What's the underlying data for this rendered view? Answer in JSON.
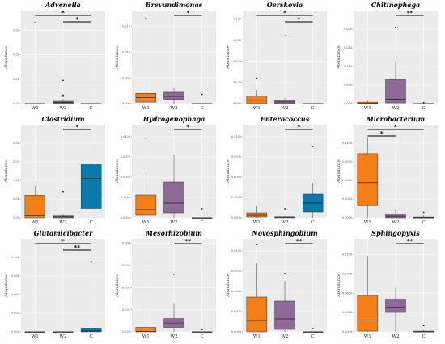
{
  "colors": {
    "W1": "#F57F17",
    "W2": "#8E6A97",
    "C": "#0A7AA8",
    "panel_bg": "#EBEBEB"
  },
  "chart_data": [
    {
      "type": "box",
      "title": "Advenella",
      "ylabel": "Abundance",
      "ylim": [
        0,
        0.038
      ],
      "yticks": [
        0,
        0.01,
        0.02,
        0.03
      ],
      "ytick_labels": [
        "0.00",
        "0.01",
        "0.02",
        "0.03"
      ],
      "categories": [
        "W1",
        "W2",
        "C"
      ],
      "boxes": [
        {
          "group": "W1",
          "min": 0,
          "q1": 0,
          "median": 0,
          "q3": 0,
          "max": 0,
          "outliers": [
            0.033
          ]
        },
        {
          "group": "W2",
          "min": 0,
          "q1": 0,
          "median": 0.0005,
          "q3": 0.001,
          "max": 0.002,
          "outliers": [
            0.003,
            0.0035,
            0.0095
          ]
        },
        {
          "group": "C",
          "min": 0,
          "q1": 0,
          "median": 0,
          "q3": 0,
          "max": 0,
          "outliers": []
        }
      ],
      "significance": [
        {
          "from": "W1",
          "to": "C",
          "label": "*"
        },
        {
          "from": "W2",
          "to": "C",
          "label": "*"
        }
      ]
    },
    {
      "type": "box",
      "title": "Brevundimonas",
      "ylabel": "Abundance",
      "ylim": [
        0,
        0.018
      ],
      "yticks": [
        0,
        0.005,
        0.01,
        0.015
      ],
      "ytick_labels": [
        "0.000",
        "0.005",
        "0.010",
        "0.015"
      ],
      "categories": [
        "W1",
        "W2",
        "C"
      ],
      "boxes": [
        {
          "group": "W1",
          "min": 0,
          "q1": 0.0003,
          "median": 0.0012,
          "q3": 0.002,
          "max": 0.003,
          "outliers": [
            0.0165
          ]
        },
        {
          "group": "W2",
          "min": 0,
          "q1": 0.0008,
          "median": 0.0014,
          "q3": 0.0022,
          "max": 0.003,
          "outliers": []
        },
        {
          "group": "C",
          "min": 0,
          "q1": 0,
          "median": 0,
          "q3": 0,
          "max": 0,
          "outliers": [
            0.0018
          ]
        }
      ],
      "significance": [
        {
          "from": "W2",
          "to": "C",
          "label": "*"
        }
      ]
    },
    {
      "type": "box",
      "title": "Oerskovia",
      "ylabel": "Abundance",
      "ylim": [
        0,
        0.11
      ],
      "yticks": [
        0,
        0.025,
        0.05,
        0.075,
        0.1
      ],
      "ytick_labels": [
        "0.000",
        "0.025",
        "0.050",
        "0.075",
        "0.100"
      ],
      "categories": [
        "W1",
        "W2",
        "C"
      ],
      "boxes": [
        {
          "group": "W1",
          "min": 0,
          "q1": 0,
          "median": 0.004,
          "q3": 0.009,
          "max": 0.016,
          "outliers": [
            0.03
          ]
        },
        {
          "group": "W2",
          "min": 0,
          "q1": 0,
          "median": 0.002,
          "q3": 0.004,
          "max": 0.007,
          "outliers": [
            0.08
          ]
        },
        {
          "group": "C",
          "min": 0,
          "q1": 0,
          "median": 0,
          "q3": 0,
          "max": 0,
          "outliers": []
        }
      ],
      "significance": [
        {
          "from": "W1",
          "to": "C",
          "label": "*"
        },
        {
          "from": "W2",
          "to": "C",
          "label": "*"
        }
      ]
    },
    {
      "type": "box",
      "title": "Chitinophaga",
      "ylabel": "Abundance",
      "ylim": [
        0,
        0.025
      ],
      "yticks": [
        0,
        0.005,
        0.01,
        0.015,
        0.02
      ],
      "ytick_labels": [
        "0.000",
        "0.005",
        "0.010",
        "0.015",
        "0.020"
      ],
      "categories": [
        "W1",
        "W2",
        "C"
      ],
      "boxes": [
        {
          "group": "W1",
          "min": 0,
          "q1": 0,
          "median": 0.0001,
          "q3": 0.0004,
          "max": 0.001,
          "outliers": []
        },
        {
          "group": "W2",
          "min": 0,
          "q1": 0.0002,
          "median": 0.0012,
          "q3": 0.0065,
          "max": 0.0115,
          "outliers": [
            0.0205
          ]
        },
        {
          "group": "C",
          "min": 0,
          "q1": 0,
          "median": 0,
          "q3": 0,
          "max": 0,
          "outliers": [
            0.0003
          ]
        }
      ],
      "significance": [
        {
          "from": "W2",
          "to": "C",
          "label": "**"
        }
      ]
    },
    {
      "type": "box",
      "title": "Clostridium",
      "ylabel": "Abundance",
      "ylim": [
        0,
        0.05
      ],
      "yticks": [
        0,
        0.01,
        0.02,
        0.03,
        0.04
      ],
      "ytick_labels": [
        "0.00",
        "0.01",
        "0.02",
        "0.03",
        "0.04"
      ],
      "categories": [
        "W1",
        "W2",
        "C"
      ],
      "boxes": [
        {
          "group": "W1",
          "min": 0,
          "q1": 0,
          "median": 0.001,
          "q3": 0.012,
          "max": 0.017,
          "outliers": []
        },
        {
          "group": "W2",
          "min": 0,
          "q1": 0,
          "median": 0.0005,
          "q3": 0.001,
          "max": 0.002,
          "outliers": [
            0.014
          ]
        },
        {
          "group": "C",
          "min": 0,
          "q1": 0.005,
          "median": 0.021,
          "q3": 0.029,
          "max": 0.04,
          "outliers": []
        }
      ],
      "significance": [
        {
          "from": "W2",
          "to": "C",
          "label": "*"
        }
      ]
    },
    {
      "type": "box",
      "title": "Hydrogenophaga",
      "ylabel": "Abundance",
      "ylim": [
        0,
        0.0115
      ],
      "yticks": [
        0,
        0.0025,
        0.005,
        0.0075,
        0.01
      ],
      "ytick_labels": [
        "0.0000",
        "0.0025",
        "0.0050",
        "0.0075",
        "0.0100"
      ],
      "categories": [
        "W1",
        "W2",
        "C"
      ],
      "boxes": [
        {
          "group": "W1",
          "min": 0,
          "q1": 0.0003,
          "median": 0.001,
          "q3": 0.0028,
          "max": 0.0055,
          "outliers": [
            0.0098
          ]
        },
        {
          "group": "W2",
          "min": 0,
          "q1": 0.0006,
          "median": 0.0018,
          "q3": 0.0044,
          "max": 0.0078,
          "outliers": []
        },
        {
          "group": "C",
          "min": 0,
          "q1": 0,
          "median": 0,
          "q3": 0,
          "max": 0,
          "outliers": [
            0.0011
          ]
        }
      ],
      "significance": [
        {
          "from": "W2",
          "to": "C",
          "label": "*"
        }
      ]
    },
    {
      "type": "box",
      "title": "Enterococcus",
      "ylabel": "Abundance",
      "ylim": [
        0,
        0.0115
      ],
      "yticks": [
        0,
        0.0025,
        0.005,
        0.0075,
        0.01
      ],
      "ytick_labels": [
        "0.0000",
        "0.0025",
        "0.0050",
        "0.0075",
        "0.0100"
      ],
      "categories": [
        "W1",
        "W2",
        "C"
      ],
      "boxes": [
        {
          "group": "W1",
          "min": 0,
          "q1": 0.0001,
          "median": 0.0003,
          "q3": 0.0006,
          "max": 0.0015,
          "outliers": []
        },
        {
          "group": "W2",
          "min": 0,
          "q1": 0,
          "median": 0.0001,
          "q3": 0.0001,
          "max": 0.0002,
          "outliers": [
            0.0011
          ]
        },
        {
          "group": "C",
          "min": 0,
          "q1": 0.0007,
          "median": 0.0018,
          "q3": 0.0029,
          "max": 0.0043,
          "outliers": [
            0.0088
          ]
        }
      ],
      "significance": [
        {
          "from": "W2",
          "to": "C",
          "label": "*"
        }
      ]
    },
    {
      "type": "box",
      "title": "Microbacterium",
      "ylabel": "Abundance",
      "ylim": [
        0,
        0.0125
      ],
      "yticks": [
        0,
        0.0025,
        0.005,
        0.0075,
        0.01
      ],
      "ytick_labels": [
        "0.0000",
        "0.0025",
        "0.0050",
        "0.0075",
        "0.0100"
      ],
      "categories": [
        "W1",
        "W2",
        "C"
      ],
      "boxes": [
        {
          "group": "W1",
          "min": 0,
          "q1": 0.0017,
          "median": 0.0047,
          "q3": 0.0086,
          "max": 0.0108,
          "outliers": []
        },
        {
          "group": "W2",
          "min": 0,
          "q1": 0,
          "median": 0.0002,
          "q3": 0.0005,
          "max": 0.0012,
          "outliers": []
        },
        {
          "group": "C",
          "min": 0,
          "q1": 0,
          "median": 0,
          "q3": 0.0001,
          "max": 0.0003,
          "outliers": [
            0.0007
          ]
        }
      ],
      "significance": [
        {
          "from": "W1",
          "to": "C",
          "label": "*"
        },
        {
          "from": "W1",
          "to": "W2",
          "label": "*"
        }
      ]
    },
    {
      "type": "box",
      "title": "Glutamicibacter",
      "ylabel": "Abundance",
      "ylim": [
        0,
        0.01
      ],
      "yticks": [
        0,
        0.002,
        0.004,
        0.006,
        0.008
      ],
      "ytick_labels": [
        "0.000",
        "0.002",
        "0.004",
        "0.006",
        "0.008"
      ],
      "categories": [
        "W1",
        "W2",
        "C"
      ],
      "boxes": [
        {
          "group": "W1",
          "min": 0,
          "q1": 0,
          "median": 0,
          "q3": 0,
          "max": 0,
          "outliers": []
        },
        {
          "group": "W2",
          "min": 0,
          "q1": 0,
          "median": 0,
          "q3": 0,
          "max": 0,
          "outliers": []
        },
        {
          "group": "C",
          "min": 0,
          "q1": 0,
          "median": 0.0001,
          "q3": 0.0004,
          "max": 0.0008,
          "outliers": [
            0.0075
          ]
        }
      ],
      "significance": [
        {
          "from": "W1",
          "to": "C",
          "label": "*"
        },
        {
          "from": "W2",
          "to": "C",
          "label": "**"
        }
      ]
    },
    {
      "type": "box",
      "title": "Mesorhizobium",
      "ylabel": "Abundance",
      "ylim": [
        0,
        0.0042
      ],
      "yticks": [
        0,
        0.001,
        0.002,
        0.003,
        0.004
      ],
      "ytick_labels": [
        "0.000",
        "0.001",
        "0.002",
        "0.003",
        "0.004"
      ],
      "categories": [
        "W1",
        "W2",
        "C"
      ],
      "boxes": [
        {
          "group": "W1",
          "min": 0,
          "q1": 0,
          "median": 2e-05,
          "q3": 0.0002,
          "max": 0.0004,
          "outliers": []
        },
        {
          "group": "W2",
          "min": 0,
          "q1": 0.0002,
          "median": 0.0004,
          "q3": 0.0006,
          "max": 0.0013,
          "outliers": [
            0.0026
          ]
        },
        {
          "group": "C",
          "min": 0,
          "q1": 0,
          "median": 0,
          "q3": 0,
          "max": 0,
          "outliers": [
            0.0001
          ]
        }
      ],
      "significance": [
        {
          "from": "W2",
          "to": "C",
          "label": "**"
        }
      ]
    },
    {
      "type": "box",
      "title": "Novosphingobium",
      "ylabel": "Abundance",
      "ylim": [
        0,
        0.0115
      ],
      "yticks": [
        0,
        0.0025,
        0.005,
        0.0075,
        0.01
      ],
      "ytick_labels": [
        "0.0000",
        "0.0025",
        "0.0050",
        "0.0075",
        "0.0100"
      ],
      "categories": [
        "W1",
        "W2",
        "C"
      ],
      "boxes": [
        {
          "group": "W1",
          "min": 0,
          "q1": 0,
          "median": 0.0014,
          "q3": 0.0043,
          "max": 0.0085,
          "outliers": [
            0.0108
          ]
        },
        {
          "group": "W2",
          "min": 0,
          "q1": 0.0003,
          "median": 0.0016,
          "q3": 0.0038,
          "max": 0.0063,
          "outliers": [
            0.0072
          ]
        },
        {
          "group": "C",
          "min": 0,
          "q1": 0,
          "median": 0,
          "q3": 0,
          "max": 0,
          "outliers": [
            0.0004
          ]
        }
      ],
      "significance": [
        {
          "from": "W2",
          "to": "C",
          "label": "**"
        }
      ]
    },
    {
      "type": "box",
      "title": "Sphingopyxis",
      "ylabel": "Abundance",
      "ylim": [
        0,
        0.012
      ],
      "yticks": [
        0,
        0.0025,
        0.005,
        0.0075,
        0.01
      ],
      "ytick_labels": [
        "0.0000",
        "0.0025",
        "0.0050",
        "0.0075",
        "0.0100"
      ],
      "categories": [
        "W1",
        "W2",
        "C"
      ],
      "boxes": [
        {
          "group": "W1",
          "min": 0,
          "q1": 0.0001,
          "median": 0.0014,
          "q3": 0.0047,
          "max": 0.0098,
          "outliers": []
        },
        {
          "group": "W2",
          "min": 0,
          "q1": 0.0025,
          "median": 0.0032,
          "q3": 0.0042,
          "max": 0.0057,
          "outliers": []
        },
        {
          "group": "C",
          "min": 0,
          "q1": 0,
          "median": 0,
          "q3": 0.0001,
          "max": 0.0002,
          "outliers": [
            0.0008
          ]
        }
      ],
      "significance": [
        {
          "from": "W2",
          "to": "C",
          "label": "**"
        }
      ]
    }
  ]
}
